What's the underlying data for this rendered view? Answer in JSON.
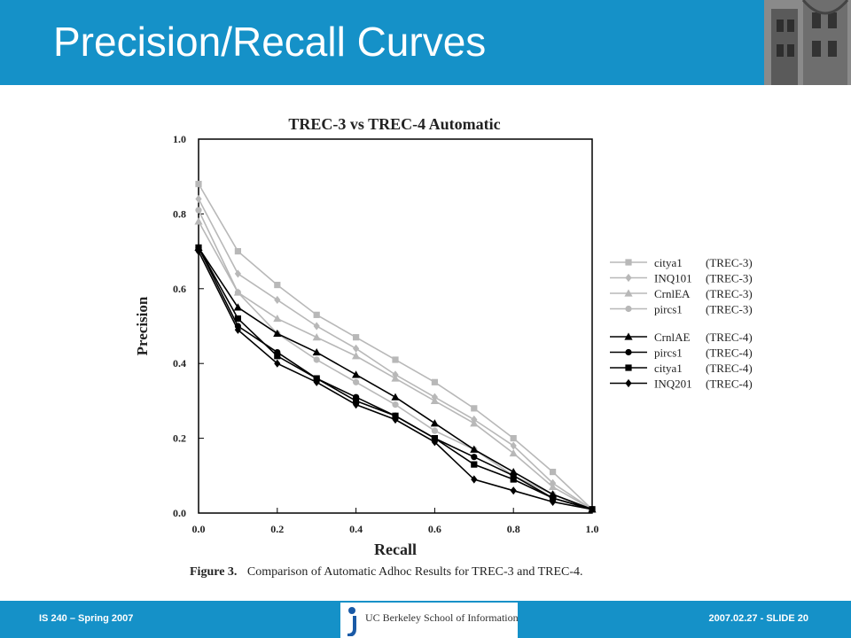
{
  "slide": {
    "title": "Precision/Recall Curves",
    "footer_left": "IS 240 – Spring 2007",
    "footer_right": "2007.02.27 - SLIDE 20",
    "logo_text": "UC Berkeley School of Information"
  },
  "colors": {
    "header_bg": "#1591c8",
    "trec3_series": "#b8b8b8",
    "trec4_series": "#000000"
  },
  "chart_data": {
    "type": "line",
    "title": "TREC-3 vs TREC-4 Automatic",
    "xlabel": "Recall",
    "ylabel": "Precision",
    "caption_bold": "Figure 3.",
    "caption_text": "Comparison of Automatic Adhoc Results for TREC-3 and TREC-4.",
    "xlim": [
      0,
      1
    ],
    "ylim": [
      0,
      1
    ],
    "x_ticks": [
      "0.0",
      "0.2",
      "0.4",
      "0.6",
      "0.8",
      "1.0"
    ],
    "y_ticks": [
      "0.0",
      "0.2",
      "0.4",
      "0.6",
      "0.8",
      "1.0"
    ],
    "legend_position": "right",
    "x": [
      0.0,
      0.1,
      0.2,
      0.3,
      0.4,
      0.5,
      0.6,
      0.7,
      0.8,
      0.9,
      1.0
    ],
    "series": [
      {
        "name": "citya1",
        "run": "(TREC-3)",
        "group": "trec3",
        "marker": "square",
        "values": [
          0.88,
          0.7,
          0.61,
          0.53,
          0.47,
          0.41,
          0.35,
          0.28,
          0.2,
          0.11,
          0.01
        ]
      },
      {
        "name": "INQ101",
        "run": "(TREC-3)",
        "group": "trec3",
        "marker": "diamond",
        "values": [
          0.84,
          0.64,
          0.57,
          0.5,
          0.44,
          0.37,
          0.31,
          0.25,
          0.18,
          0.08,
          0.01
        ]
      },
      {
        "name": "CrnlEA",
        "run": "(TREC-3)",
        "group": "trec3",
        "marker": "triangle",
        "values": [
          0.78,
          0.59,
          0.52,
          0.47,
          0.42,
          0.36,
          0.3,
          0.24,
          0.16,
          0.07,
          0.01
        ]
      },
      {
        "name": "pircs1",
        "run": "(TREC-3)",
        "group": "trec3",
        "marker": "circle",
        "values": [
          0.81,
          0.59,
          0.48,
          0.41,
          0.35,
          0.29,
          0.22,
          0.17,
          0.1,
          0.05,
          0.01
        ]
      },
      {
        "name": "CrnlAE",
        "run": "(TREC-4)",
        "group": "trec4",
        "marker": "triangle",
        "values": [
          0.71,
          0.55,
          0.48,
          0.43,
          0.37,
          0.31,
          0.24,
          0.17,
          0.11,
          0.05,
          0.01
        ]
      },
      {
        "name": "pircs1",
        "run": "(TREC-4)",
        "group": "trec4",
        "marker": "circle",
        "values": [
          0.71,
          0.5,
          0.43,
          0.36,
          0.31,
          0.26,
          0.2,
          0.15,
          0.1,
          0.04,
          0.01
        ]
      },
      {
        "name": "citya1",
        "run": "(TREC-4)",
        "group": "trec4",
        "marker": "square",
        "values": [
          0.71,
          0.52,
          0.42,
          0.36,
          0.3,
          0.26,
          0.2,
          0.13,
          0.09,
          0.04,
          0.01
        ]
      },
      {
        "name": "INQ201",
        "run": "(TREC-4)",
        "group": "trec4",
        "marker": "diamond",
        "values": [
          0.7,
          0.49,
          0.4,
          0.35,
          0.29,
          0.25,
          0.19,
          0.09,
          0.06,
          0.03,
          0.01
        ]
      }
    ]
  }
}
